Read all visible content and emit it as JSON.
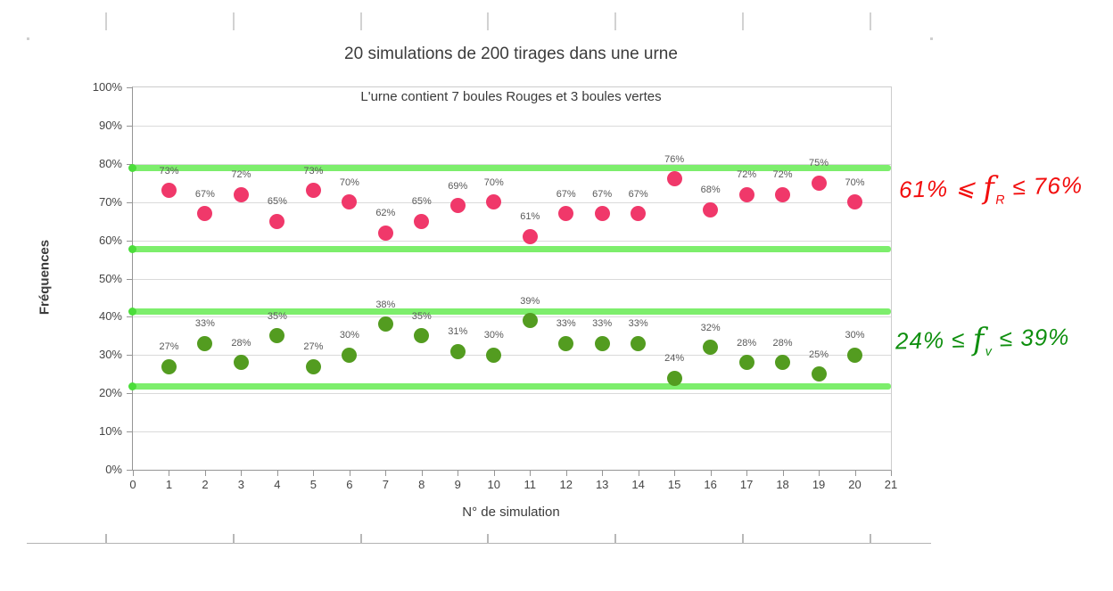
{
  "chart_data": {
    "type": "scatter",
    "title": "20 simulations de 200 tirages dans une urne",
    "subtitle": "L'urne contient 7 boules Rouges et 3 boules vertes",
    "xlabel": "N° de simulation",
    "ylabel": "Fréquences",
    "xlim": [
      0,
      21
    ],
    "ylim": [
      0,
      100
    ],
    "grid": true,
    "legend": "none",
    "x": [
      1,
      2,
      3,
      4,
      5,
      6,
      7,
      8,
      9,
      10,
      11,
      12,
      13,
      14,
      15,
      16,
      17,
      18,
      19,
      20
    ],
    "x_ticks": [
      "0",
      "1",
      "2",
      "3",
      "4",
      "5",
      "6",
      "7",
      "8",
      "9",
      "10",
      "11",
      "12",
      "13",
      "14",
      "15",
      "16",
      "17",
      "18",
      "19",
      "20",
      "21"
    ],
    "y_ticks": [
      "0%",
      "10%",
      "20%",
      "30%",
      "40%",
      "50%",
      "60%",
      "70%",
      "80%",
      "90%",
      "100%"
    ],
    "series": [
      {
        "name": "rouges",
        "color": "#f0386a",
        "values": [
          73,
          67,
          72,
          65,
          73,
          70,
          62,
          65,
          69,
          70,
          61,
          67,
          67,
          67,
          76,
          68,
          72,
          72,
          75,
          70
        ],
        "point_labels": [
          "73%",
          "67%",
          "72%",
          "65%",
          "73%",
          "70%",
          "62%",
          "65%",
          "69%",
          "70%",
          "61%",
          "67%",
          "67%",
          "67%",
          "76%",
          "68%",
          "72%",
          "72%",
          "75%",
          "70%"
        ]
      },
      {
        "name": "vertes",
        "color": "#539c20",
        "values": [
          27,
          33,
          28,
          35,
          27,
          30,
          38,
          35,
          31,
          30,
          39,
          33,
          33,
          33,
          24,
          32,
          28,
          28,
          25,
          30
        ],
        "point_labels": [
          "27%",
          "33%",
          "28%",
          "35%",
          "27%",
          "30%",
          "38%",
          "35%",
          "31%",
          "30%",
          "39%",
          "33%",
          "33%",
          "33%",
          "24%",
          "32%",
          "28%",
          "28%",
          "25%",
          "30%"
        ]
      }
    ],
    "reference_bands": {
      "color": "#7dee6c",
      "marker_color": "#4bdd3a",
      "values": [
        78.8,
        57.8,
        41.3,
        21.7
      ]
    }
  },
  "annotations": {
    "red_interval": {
      "p1": "61% ⩽ ",
      "f": "f",
      "sub": "R",
      "p2": " ≤ 76%",
      "color": "#f20d0d"
    },
    "green_interval": {
      "p1": "24% ≤ ",
      "f": "f",
      "sub": "v",
      "p2": " ≤ 39%",
      "color": "#0f8f0f"
    }
  }
}
